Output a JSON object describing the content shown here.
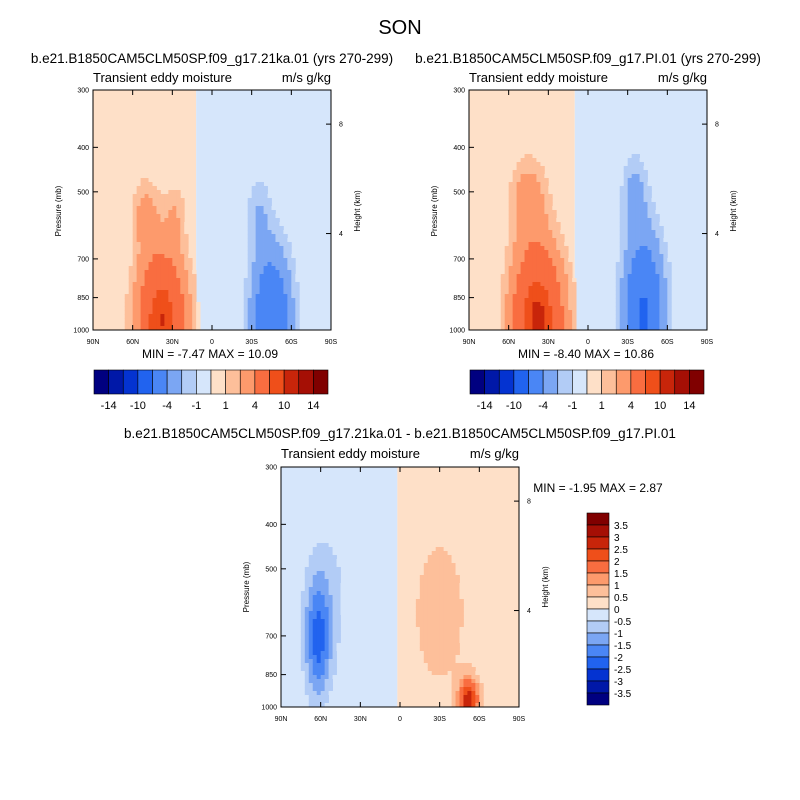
{
  "figure": {
    "title": "SON"
  },
  "chart_data": [
    {
      "type": "heatmap",
      "title": "b.e21.B1850CAM5CLM50SP.f09_g17.21ka.01 (yrs 270-299)",
      "subtitle_left": "Transient eddy moisture",
      "subtitle_right": "m/s g/kg",
      "ylabel": "Pressure (mb)",
      "ylabel_right": "Height (km)",
      "xticks": [
        "90N",
        "60N",
        "30N",
        "0",
        "30S",
        "60S",
        "90S"
      ],
      "yticks": [
        "300",
        "400",
        "500",
        "700",
        "850",
        "1000"
      ],
      "yticks_right": [
        "8",
        "4"
      ],
      "xlim": [
        90,
        -90
      ],
      "ylim": [
        1000,
        300
      ],
      "y_scale": "log",
      "stats": "MIN = -7.47  MAX = 10.09",
      "min": -7.47,
      "max": 10.09,
      "zero_line_lat": 12,
      "levels": [
        -14,
        -12,
        -10,
        -8,
        -4,
        -2,
        -1,
        0,
        1,
        2,
        4,
        8,
        10,
        12,
        14
      ],
      "colorbar_labels": [
        "-14",
        "-10",
        "-4",
        "-1",
        "1",
        "4",
        "10",
        "14"
      ],
      "blobs": [
        {
          "lat": 38,
          "p": 960,
          "dlat": 18,
          "dlog": 0.34,
          "val": 10.09
        },
        {
          "lat": 50,
          "p": 560,
          "dlat": 10,
          "dlog": 0.18,
          "val": 2.5
        },
        {
          "lat": 28,
          "p": 560,
          "dlat": 8,
          "dlog": 0.16,
          "val": 1.6
        },
        {
          "lat": -45,
          "p": 960,
          "dlat": 15,
          "dlog": 0.36,
          "val": -7.47
        },
        {
          "lat": -35,
          "p": 560,
          "dlat": 9,
          "dlog": 0.2,
          "val": -1.8
        }
      ]
    },
    {
      "type": "heatmap",
      "title": "b.e21.B1850CAM5CLM50SP.f09_g17.PI.01 (yrs 270-299)",
      "subtitle_left": "Transient eddy moisture",
      "subtitle_right": "m/s g/kg",
      "ylabel": "Pressure (mb)",
      "ylabel_right": "Height (km)",
      "xticks": [
        "90N",
        "60N",
        "30N",
        "0",
        "30S",
        "60S",
        "90S"
      ],
      "yticks": [
        "300",
        "400",
        "500",
        "700",
        "850",
        "1000"
      ],
      "yticks_right": [
        "8",
        "4"
      ],
      "xlim": [
        90,
        -90
      ],
      "ylim": [
        1000,
        300
      ],
      "y_scale": "log",
      "stats": "MIN = -8.40  MAX = 10.86",
      "min": -8.4,
      "max": 10.86,
      "zero_line_lat": 10,
      "levels": [
        -14,
        -12,
        -10,
        -8,
        -4,
        -2,
        -1,
        0,
        1,
        2,
        4,
        8,
        10,
        12,
        14
      ],
      "colorbar_labels": [
        "-14",
        "-10",
        "-4",
        "-1",
        "1",
        "4",
        "10",
        "14"
      ],
      "blobs": [
        {
          "lat": 38,
          "p": 960,
          "dlat": 19,
          "dlog": 0.36,
          "val": 10.86
        },
        {
          "lat": 45,
          "p": 520,
          "dlat": 14,
          "dlog": 0.22,
          "val": 2.8
        },
        {
          "lat": -42,
          "p": 920,
          "dlat": 15,
          "dlog": 0.38,
          "val": -8.4
        },
        {
          "lat": -35,
          "p": 500,
          "dlat": 10,
          "dlog": 0.2,
          "val": -2.2
        }
      ]
    },
    {
      "type": "heatmap",
      "title": "b.e21.B1850CAM5CLM50SP.f09_g17.21ka.01 - b.e21.B1850CAM5CLM50SP.f09_g17.PI.01",
      "subtitle_left": "Transient eddy moisture",
      "subtitle_right": "m/s g/kg",
      "ylabel": "Pressure (mb)",
      "ylabel_right": "Height (km)",
      "xticks": [
        "90N",
        "60N",
        "30N",
        "0",
        "30S",
        "60S",
        "90S"
      ],
      "yticks": [
        "300",
        "400",
        "500",
        "700",
        "850",
        "1000"
      ],
      "yticks_right": [
        "8",
        "4"
      ],
      "xlim": [
        90,
        -90
      ],
      "ylim": [
        1000,
        300
      ],
      "y_scale": "log",
      "stats": "MIN = -1.95  MAX =  2.87",
      "min": -1.95,
      "max": 2.87,
      "zero_line_lat": 2,
      "levels": [
        -3.5,
        -3,
        -2.5,
        -2,
        -1.5,
        -1,
        -0.5,
        0,
        0.5,
        1,
        1.5,
        2,
        2.5,
        3,
        3.5
      ],
      "colorbar_labels": [
        "3.5",
        "3",
        "2.5",
        "2",
        "1.5",
        "1",
        "0.5",
        "0",
        "-0.5",
        "-1",
        "-1.5",
        "-2",
        "-2.5",
        "-3",
        "-3.5"
      ],
      "blobs": [
        {
          "lat": -52,
          "p": 970,
          "dlat": 8,
          "dlog": 0.12,
          "val": 2.87
        },
        {
          "lat": -30,
          "p": 620,
          "dlat": 22,
          "dlog": 0.42,
          "val": 0.9
        },
        {
          "lat": 62,
          "p": 720,
          "dlat": 10,
          "dlog": 0.3,
          "val": -1.95
        },
        {
          "lat": 55,
          "p": 560,
          "dlat": 20,
          "dlog": 0.4,
          "val": -0.6
        }
      ]
    }
  ]
}
